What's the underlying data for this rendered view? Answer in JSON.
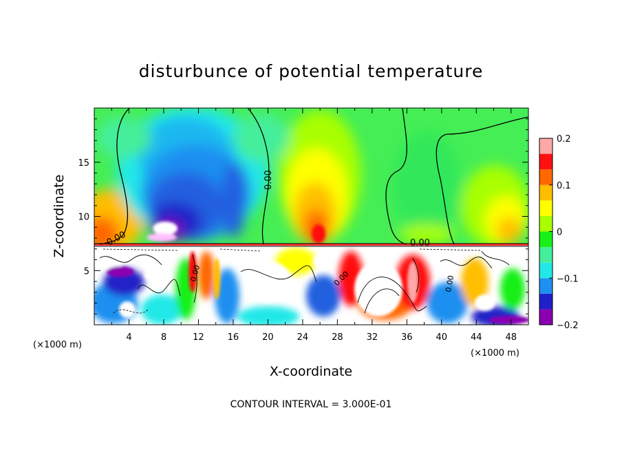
{
  "chart_data": {
    "type": "heatmap",
    "title": "disturbunce of potential temperature",
    "xlabel": "X-coordinate",
    "ylabel": "Z-coordinate",
    "x_unit_left": "(×1000 m)",
    "x_unit_right": "(×1000 m)",
    "xlim": [
      0,
      50
    ],
    "ylim": [
      0,
      20
    ],
    "x_ticks": [
      4,
      8,
      12,
      16,
      20,
      24,
      28,
      32,
      36,
      40,
      44,
      48
    ],
    "y_ticks": [
      5,
      10,
      15
    ],
    "colorbar": {
      "min": -0.2,
      "max": 0.2,
      "ticks": [
        0.2,
        0.1,
        0,
        -0.1,
        -0.2
      ],
      "tick_labels": [
        "0.2",
        "0.1",
        "0",
        "−0.1",
        "−0.2"
      ],
      "colors": [
        "#8a00b0",
        "#2020c8",
        "#1f8ff0",
        "#22e8e8",
        "#45ee9a",
        "#18f018",
        "#a8ff00",
        "#ffff00",
        "#ffbe00",
        "#ff6800",
        "#ff1010",
        "#ffa8a8"
      ]
    },
    "contour_labels": [
      "0.00",
      "0.00",
      "0.00",
      "0.00",
      "0.00",
      "0.00"
    ],
    "contour_interval_text": "CONTOUR INTERVAL = 3.000E-01"
  }
}
